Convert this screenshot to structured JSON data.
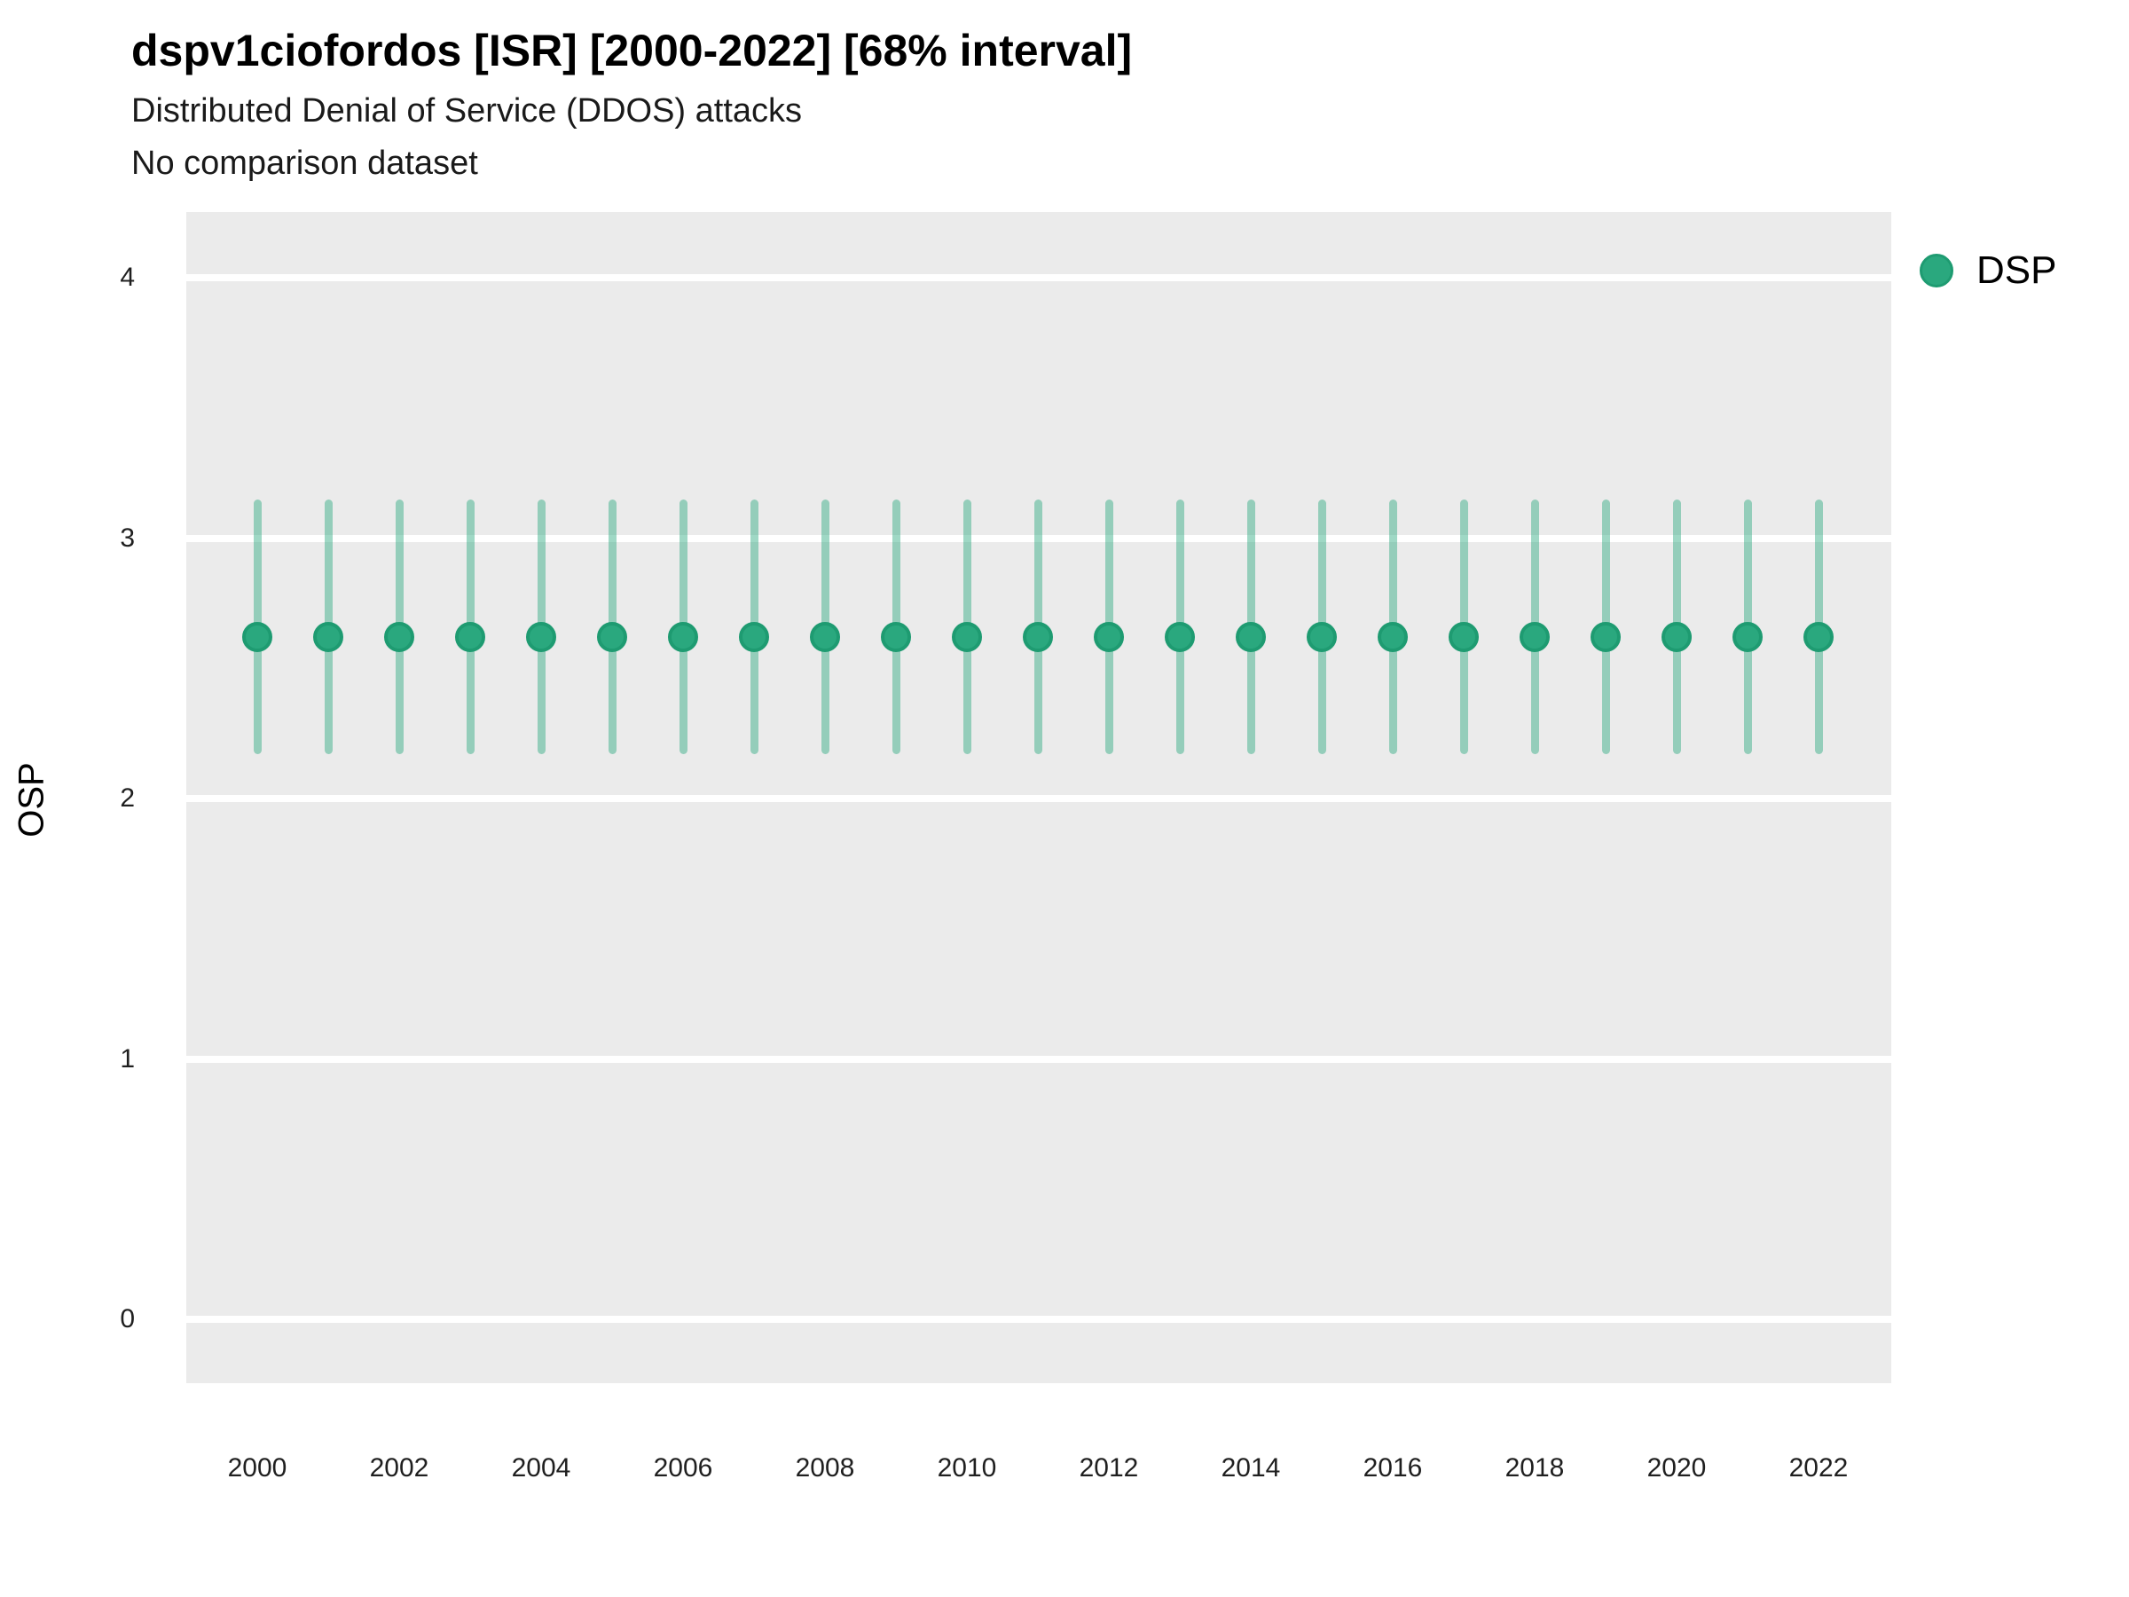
{
  "header": {
    "title": "dspv1ciofordos [ISR] [2000-2022] [68% interval]",
    "subtitle": "Distributed Denial of Service (DDOS) attacks",
    "note": "No comparison dataset"
  },
  "legend": {
    "items": [
      {
        "label": "DSP",
        "color": "#2aa87e"
      }
    ],
    "position": "right"
  },
  "colors": {
    "panel_bg": "#ebebeb",
    "grid": "#ffffff",
    "point": "#2aa87e",
    "point_border": "#1e9b71",
    "range": "#2aa87e",
    "range_opacity": 0.45,
    "text": "#000000",
    "tick_text": "#1f1f1f"
  },
  "chart_data": {
    "type": "scatter",
    "subtype": "pointrange-interval",
    "title": "dspv1ciofordos [ISR] [2000-2022] [68% interval]",
    "subtitle": "Distributed Denial of Service (DDOS) attacks",
    "annotation": "No comparison dataset",
    "interval": "68%",
    "xlabel": "",
    "ylabel": "OSP",
    "legend_position": "right",
    "grid": "horizontal-major-only",
    "ylim": [
      -0.25,
      4.26
    ],
    "yticks": [
      0,
      1,
      2,
      3,
      4
    ],
    "xticks": [
      2000,
      2002,
      2004,
      2006,
      2008,
      2010,
      2012,
      2014,
      2016,
      2018,
      2020,
      2022
    ],
    "x": [
      2000,
      2001,
      2002,
      2003,
      2004,
      2005,
      2006,
      2007,
      2008,
      2009,
      2010,
      2011,
      2012,
      2013,
      2014,
      2015,
      2016,
      2017,
      2018,
      2019,
      2020,
      2021,
      2022
    ],
    "series": [
      {
        "name": "DSP",
        "estimate": [
          2.62,
          2.62,
          2.62,
          2.62,
          2.62,
          2.62,
          2.62,
          2.62,
          2.62,
          2.62,
          2.62,
          2.62,
          2.62,
          2.62,
          2.62,
          2.62,
          2.62,
          2.62,
          2.62,
          2.62,
          2.62,
          2.62,
          2.62
        ],
        "low": [
          2.17,
          2.17,
          2.17,
          2.17,
          2.17,
          2.17,
          2.17,
          2.17,
          2.17,
          2.17,
          2.17,
          2.17,
          2.17,
          2.17,
          2.17,
          2.17,
          2.17,
          2.17,
          2.17,
          2.17,
          2.17,
          2.17,
          2.17
        ],
        "high": [
          3.15,
          3.15,
          3.15,
          3.15,
          3.15,
          3.15,
          3.15,
          3.15,
          3.15,
          3.15,
          3.15,
          3.15,
          3.15,
          3.15,
          3.15,
          3.15,
          3.15,
          3.15,
          3.15,
          3.15,
          3.15,
          3.15,
          3.15
        ]
      }
    ]
  }
}
